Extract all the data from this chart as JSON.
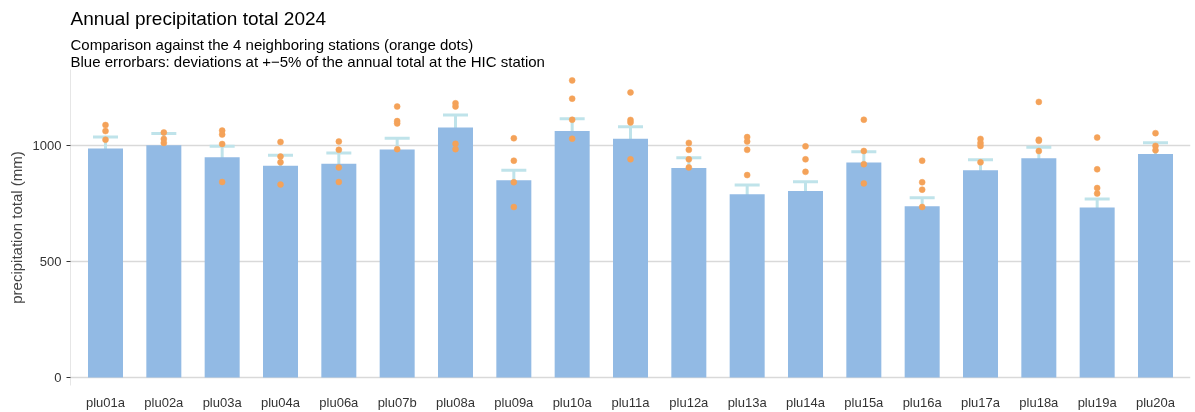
{
  "chart_data": {
    "type": "bar",
    "title": "Annual precipitation total  2024",
    "subtitle": "Comparison against the 4 neighboring stations (orange dots)\nBlue errorbars: deviations at +−5% of the annual total at the HIC station",
    "ylabel": "precipitation total (mm)",
    "categories": [
      "plu01a",
      "plu02a",
      "plu03a",
      "plu04a",
      "plu06a",
      "plu07b",
      "plu08a",
      "plu09a",
      "plu10a",
      "plu11a",
      "plu12a",
      "plu13a",
      "plu14a",
      "plu15a",
      "plu16a",
      "plu17a",
      "plu18a",
      "plu19a",
      "plu20a"
    ],
    "ylim": [
      -35,
      1330
    ],
    "yticks": [
      0,
      500,
      1000
    ],
    "grid": "y",
    "series": [
      {
        "color": "#92bae4",
        "values": [
          989,
          1003,
          951,
          914,
          923,
          984,
          1079,
          852,
          1064,
          1031,
          904,
          791,
          805,
          928,
          739,
          895,
          947,
          734,
          965
        ],
        "errors": [
          49.5,
          50.2,
          47.6,
          45.7,
          46.2,
          49.2,
          54.0,
          42.6,
          53.2,
          51.6,
          45.2,
          39.6,
          40.3,
          46.4,
          37.0,
          44.8,
          47.4,
          36.7,
          48.3
        ]
      },
      {
        "type": "scatter",
        "color": "#f4a259",
        "marker": "circle",
        "x": [
          "plu01a",
          "plu01a",
          "plu01a",
          "plu02a",
          "plu02a",
          "plu02a",
          "plu03a",
          "plu03a",
          "plu03a",
          "plu03a",
          "plu04a",
          "plu04a",
          "plu04a",
          "plu04a",
          "plu06a",
          "plu06a",
          "plu06a",
          "plu06a",
          "plu07b",
          "plu07b",
          "plu07b",
          "plu07b",
          "plu08a",
          "plu08a",
          "plu08a",
          "plu08a",
          "plu09a",
          "plu09a",
          "plu09a",
          "plu09a",
          "plu10a",
          "plu10a",
          "plu10a",
          "plu10a",
          "plu11a",
          "plu11a",
          "plu11a",
          "plu11a",
          "plu12a",
          "plu12a",
          "plu12a",
          "plu12a",
          "plu13a",
          "plu13a",
          "plu13a",
          "plu13a",
          "plu14a",
          "plu14a",
          "plu14a",
          "plu15a",
          "plu15a",
          "plu15a",
          "plu15a",
          "plu16a",
          "plu16a",
          "plu16a",
          "plu16a",
          "plu17a",
          "plu17a",
          "plu17a",
          "plu17a",
          "plu18a",
          "plu18a",
          "plu18a",
          "plu18a",
          "plu19a",
          "plu19a",
          "plu19a",
          "plu19a",
          "plu20a",
          "plu20a",
          "plu20a"
        ],
        "values": [
          1090,
          1064,
          1027,
          1058,
          1030,
          1013,
          1066,
          1049,
          1008,
          844,
          1017,
          954,
          929,
          833,
          1019,
          983,
          907,
          844,
          1170,
          1107,
          1097,
          986,
          1184,
          1170,
          1009,
          986,
          1033,
          936,
          843,
          736,
          1283,
          1204,
          1113,
          1031,
          1231,
          1112,
          1101,
          942,
          1013,
          983,
          942,
          907,
          1038,
          1019,
          983,
          874,
          998,
          942,
          888,
          1113,
          978,
          921,
          838,
          936,
          843,
          811,
          736,
          1030,
          1013,
          1000,
          929,
          1190,
          1027,
          1022,
          978,
          1036,
          899,
          818,
          794,
          1055,
          1000,
          981
        ]
      }
    ]
  }
}
